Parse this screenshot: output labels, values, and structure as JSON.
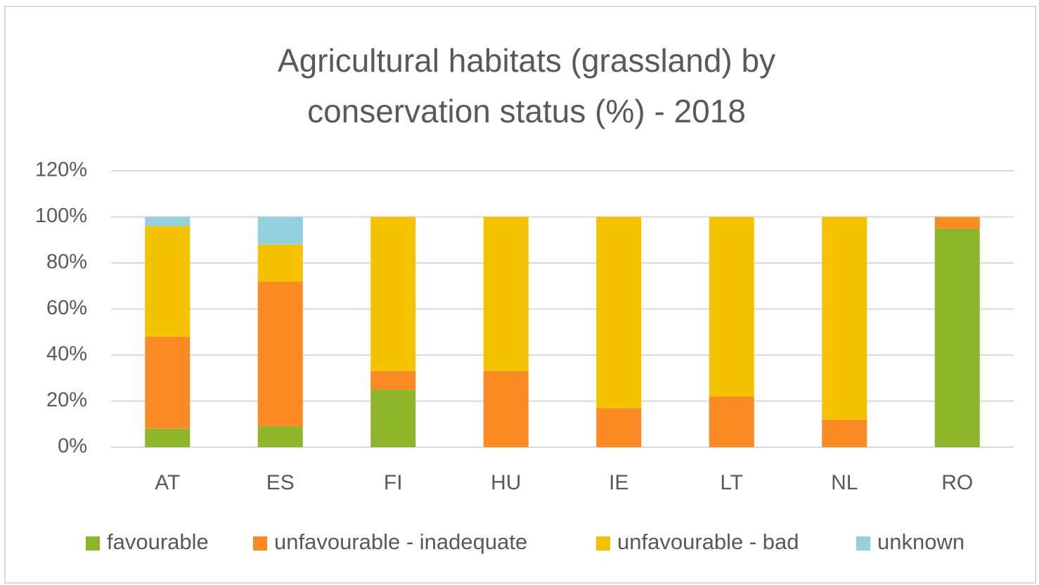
{
  "chart_data": {
    "type": "stacked_bar",
    "title": "Agricultural habitats (grassland) by conservation status (%) - 2018",
    "categories": [
      "AT",
      "ES",
      "FI",
      "HU",
      "IE",
      "LT",
      "NL",
      "RO"
    ],
    "series": [
      {
        "name": "favourable",
        "color": "#8db62b",
        "values": [
          8,
          9,
          25,
          0,
          0,
          0,
          0,
          95
        ]
      },
      {
        "name": "unfavourable - inadequate",
        "color": "#fc8a23",
        "values": [
          40,
          63,
          8,
          33,
          17,
          22,
          12,
          5
        ]
      },
      {
        "name": "unfavourable - bad",
        "color": "#f5c200",
        "values": [
          48,
          16,
          67,
          67,
          83,
          78,
          88,
          0
        ]
      },
      {
        "name": "unknown",
        "color": "#92d0de",
        "values": [
          4,
          12,
          0,
          0,
          0,
          0,
          0,
          0
        ]
      }
    ],
    "ylim": [
      0,
      120
    ],
    "yticks": [
      {
        "value": 0,
        "label": "0%"
      },
      {
        "value": 20,
        "label": "20%"
      },
      {
        "value": 40,
        "label": "40%"
      },
      {
        "value": 60,
        "label": "60%"
      },
      {
        "value": 80,
        "label": "80%"
      },
      {
        "value": 100,
        "label": "100%"
      },
      {
        "value": 120,
        "label": "120%"
      }
    ],
    "grid": true,
    "legend": "bottom"
  }
}
